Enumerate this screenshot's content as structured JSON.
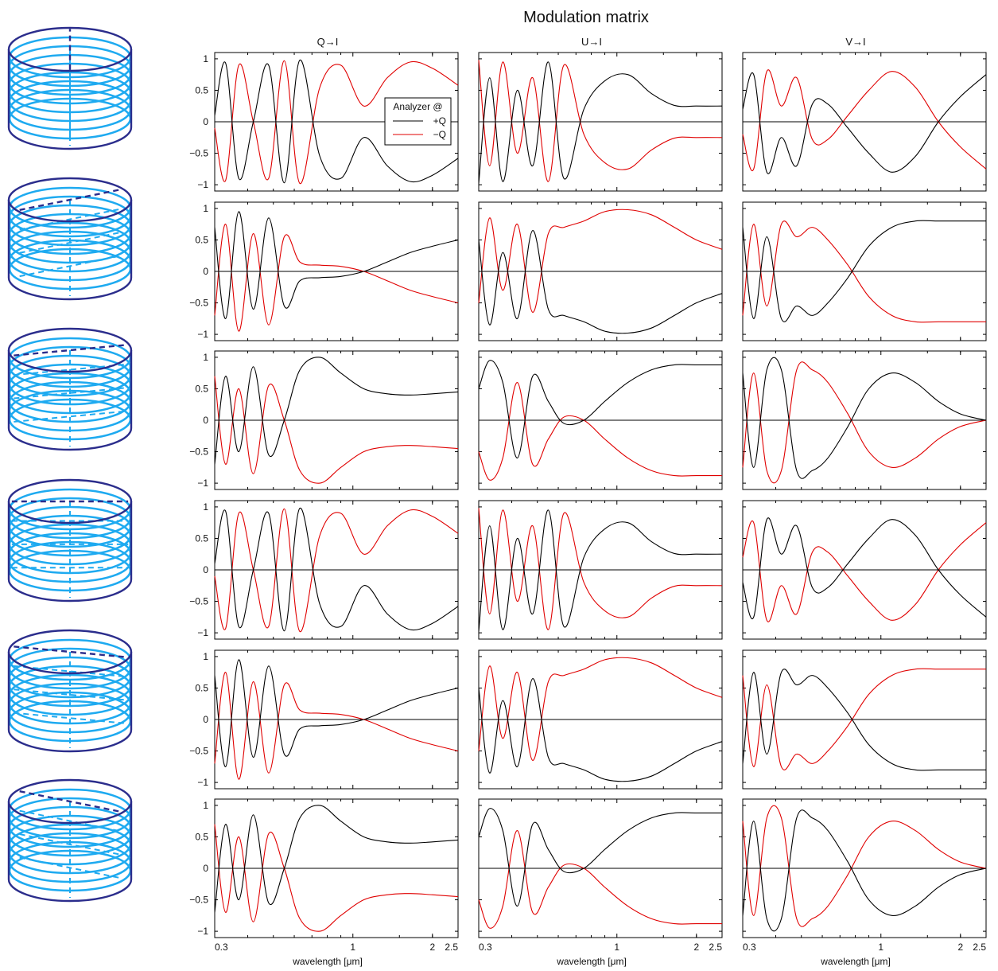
{
  "title": "Modulation matrix",
  "column_titles": [
    "Q→I",
    "U→I",
    "V→I"
  ],
  "xlabel": "wavelength [μm]",
  "legend": {
    "title": "Analyzer @",
    "entries": [
      "+Q",
      "−Q"
    ]
  },
  "colors": {
    "plus_q": "#000000",
    "minus_q": "#e00000",
    "fiber": "#1eaaf0",
    "frame": "#2b2d8c"
  },
  "chart_data": {
    "type": "line",
    "title": "Modulation matrix",
    "xlabel": "wavelength [μm]",
    "xscale": "log",
    "xlim": [
      0.3,
      2.5
    ],
    "ylim": [
      -1.1,
      1.1
    ],
    "xticks": [
      0.3,
      1,
      2,
      2.5
    ],
    "xtick_labels": [
      "0.3",
      "1",
      "2",
      "2.5"
    ],
    "yticks": [
      -1,
      -0.5,
      0,
      0.5,
      1
    ],
    "ytick_labels": [
      "−1",
      "−0.5",
      "0",
      "0.5",
      "1"
    ],
    "grid": false,
    "legend_position": "inside top-right (row 1, Q→I panel)",
    "series_names": [
      "+Q",
      "−Q"
    ],
    "x": [
      0.3,
      0.33,
      0.37,
      0.42,
      0.48,
      0.55,
      0.63,
      0.75,
      0.9,
      1.1,
      1.35,
      1.65,
      2.0,
      2.5
    ],
    "rows": [
      {
        "panels": [
          {
            "column": "Q→I",
            "+Q": [
              0.1,
              0.93,
              -0.9,
              0.0,
              0.9,
              -0.97,
              0.98,
              -0.55,
              -0.9,
              -0.25,
              -0.7,
              -0.95,
              -0.85,
              -0.58
            ]
          },
          {
            "column": "U→I",
            "+Q": [
              -0.98,
              0.7,
              -0.95,
              0.5,
              -0.7,
              0.95,
              -0.9,
              0.2,
              0.65,
              0.75,
              0.45,
              0.26,
              0.25,
              0.25
            ]
          },
          {
            "column": "V→I",
            "+Q": [
              0.2,
              0.75,
              -0.8,
              -0.25,
              -0.7,
              0.28,
              0.28,
              -0.1,
              -0.5,
              -0.8,
              -0.55,
              0.0,
              0.4,
              0.75
            ]
          }
        ]
      },
      {
        "panels": [
          {
            "column": "Q→I",
            "+Q": [
              0.7,
              -0.75,
              0.95,
              -0.6,
              0.85,
              -0.55,
              -0.15,
              -0.1,
              -0.08,
              0.0,
              0.15,
              0.3,
              0.4,
              0.5
            ]
          },
          {
            "column": "U→I",
            "+Q": [
              0.5,
              -0.85,
              0.3,
              -0.75,
              0.65,
              -0.6,
              -0.7,
              -0.8,
              -0.95,
              -0.98,
              -0.9,
              -0.7,
              -0.5,
              -0.35
            ]
          },
          {
            "column": "V→I",
            "+Q": [
              0.7,
              -0.75,
              0.55,
              -0.75,
              -0.55,
              -0.7,
              -0.5,
              -0.1,
              0.4,
              0.7,
              0.8,
              0.8,
              0.8,
              0.8
            ]
          }
        ]
      },
      {
        "panels": [
          {
            "column": "Q→I",
            "+Q": [
              -0.7,
              0.7,
              -0.5,
              0.85,
              -0.55,
              0.0,
              0.8,
              1.0,
              0.75,
              0.5,
              0.42,
              0.4,
              0.42,
              0.45
            ]
          },
          {
            "column": "U→I",
            "+Q": [
              0.5,
              0.95,
              0.6,
              -0.6,
              0.7,
              0.3,
              -0.05,
              0.0,
              0.3,
              0.6,
              0.8,
              0.88,
              0.88,
              0.88
            ]
          },
          {
            "column": "V→I",
            "+Q": [
              0.75,
              -0.75,
              0.8,
              0.8,
              -0.8,
              -0.8,
              -0.6,
              -0.1,
              0.5,
              0.75,
              0.6,
              0.3,
              0.1,
              0.0
            ]
          }
        ]
      },
      {
        "panels": [
          {
            "column": "Q→I",
            "+Q": [
              0.1,
              0.93,
              -0.9,
              0.0,
              0.9,
              -0.97,
              0.98,
              -0.55,
              -0.9,
              -0.25,
              -0.7,
              -0.95,
              -0.85,
              -0.58
            ]
          },
          {
            "column": "U→I",
            "+Q": [
              -0.98,
              0.7,
              -0.95,
              0.5,
              -0.7,
              0.95,
              -0.9,
              0.2,
              0.65,
              0.75,
              0.45,
              0.26,
              0.25,
              0.25
            ]
          },
          {
            "column": "V→I",
            "+Q": [
              -0.2,
              -0.75,
              0.8,
              0.25,
              0.7,
              -0.28,
              -0.28,
              0.1,
              0.5,
              0.8,
              0.55,
              0.0,
              -0.4,
              -0.75
            ]
          }
        ]
      },
      {
        "panels": [
          {
            "column": "Q→I",
            "+Q": [
              0.7,
              -0.75,
              0.95,
              -0.6,
              0.85,
              -0.55,
              -0.15,
              -0.1,
              -0.08,
              0.0,
              0.15,
              0.3,
              0.4,
              0.5
            ]
          },
          {
            "column": "U→I",
            "+Q": [
              0.5,
              -0.85,
              0.3,
              -0.75,
              0.65,
              -0.6,
              -0.7,
              -0.8,
              -0.95,
              -0.98,
              -0.9,
              -0.7,
              -0.5,
              -0.35
            ]
          },
          {
            "column": "V→I",
            "+Q": [
              -0.7,
              0.75,
              -0.55,
              0.75,
              0.55,
              0.7,
              0.5,
              0.1,
              -0.4,
              -0.7,
              -0.8,
              -0.8,
              -0.8,
              -0.8
            ]
          }
        ]
      },
      {
        "panels": [
          {
            "column": "Q→I",
            "+Q": [
              -0.7,
              0.7,
              -0.5,
              0.85,
              -0.55,
              0.0,
              0.8,
              1.0,
              0.75,
              0.5,
              0.42,
              0.4,
              0.42,
              0.45
            ]
          },
          {
            "column": "U→I",
            "+Q": [
              0.5,
              0.95,
              0.6,
              -0.6,
              0.7,
              0.3,
              -0.05,
              0.0,
              0.3,
              0.6,
              0.8,
              0.88,
              0.88,
              0.88
            ]
          },
          {
            "column": "V→I",
            "+Q": [
              -0.75,
              0.75,
              -0.8,
              -0.8,
              0.8,
              0.8,
              0.6,
              0.1,
              -0.5,
              -0.75,
              -0.6,
              -0.3,
              -0.1,
              0.0
            ]
          }
        ]
      }
    ],
    "note_minus_q": "−Q curve equals the negative of +Q in every panel"
  },
  "schematics": {
    "description_kind": "fiber-loop polarization controller sketches, one per row",
    "fast_axis_angles_deg": [
      90,
      30,
      15,
      0,
      -15,
      -30
    ]
  }
}
